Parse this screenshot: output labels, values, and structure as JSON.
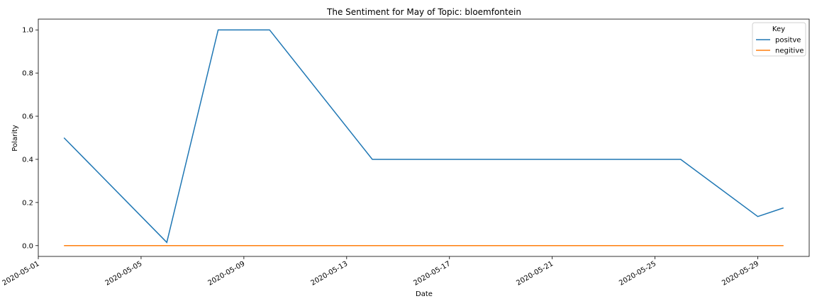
{
  "chart_data": {
    "type": "line",
    "title": "The Sentiment for May of Topic: bloemfontein",
    "xlabel": "Date",
    "ylabel": "Polarity",
    "x_range": [
      "2020-05-01",
      "2020-05-31"
    ],
    "ylim": [
      -0.05,
      1.05
    ],
    "x_ticks": [
      "2020-05-01",
      "2020-05-05",
      "2020-05-09",
      "2020-05-13",
      "2020-05-17",
      "2020-05-21",
      "2020-05-25",
      "2020-05-29"
    ],
    "y_ticks": [
      "0.0",
      "0.2",
      "0.4",
      "0.6",
      "0.8",
      "1.0"
    ],
    "grid": false,
    "legend": {
      "title": "Key",
      "placement": "top-right"
    },
    "series": [
      {
        "name": "positve",
        "color": "#1f77b4",
        "points": [
          {
            "x": "2020-05-02",
            "y": 0.5
          },
          {
            "x": "2020-05-06",
            "y": 0.015
          },
          {
            "x": "2020-05-08",
            "y": 1.0
          },
          {
            "x": "2020-05-10",
            "y": 1.0
          },
          {
            "x": "2020-05-14",
            "y": 0.4
          },
          {
            "x": "2020-05-26",
            "y": 0.4
          },
          {
            "x": "2020-05-29",
            "y": 0.135
          },
          {
            "x": "2020-05-30",
            "y": 0.175
          }
        ]
      },
      {
        "name": "negitive",
        "color": "#ff7f0e",
        "points": [
          {
            "x": "2020-05-02",
            "y": 0.0
          },
          {
            "x": "2020-05-30",
            "y": 0.0
          }
        ]
      }
    ]
  }
}
